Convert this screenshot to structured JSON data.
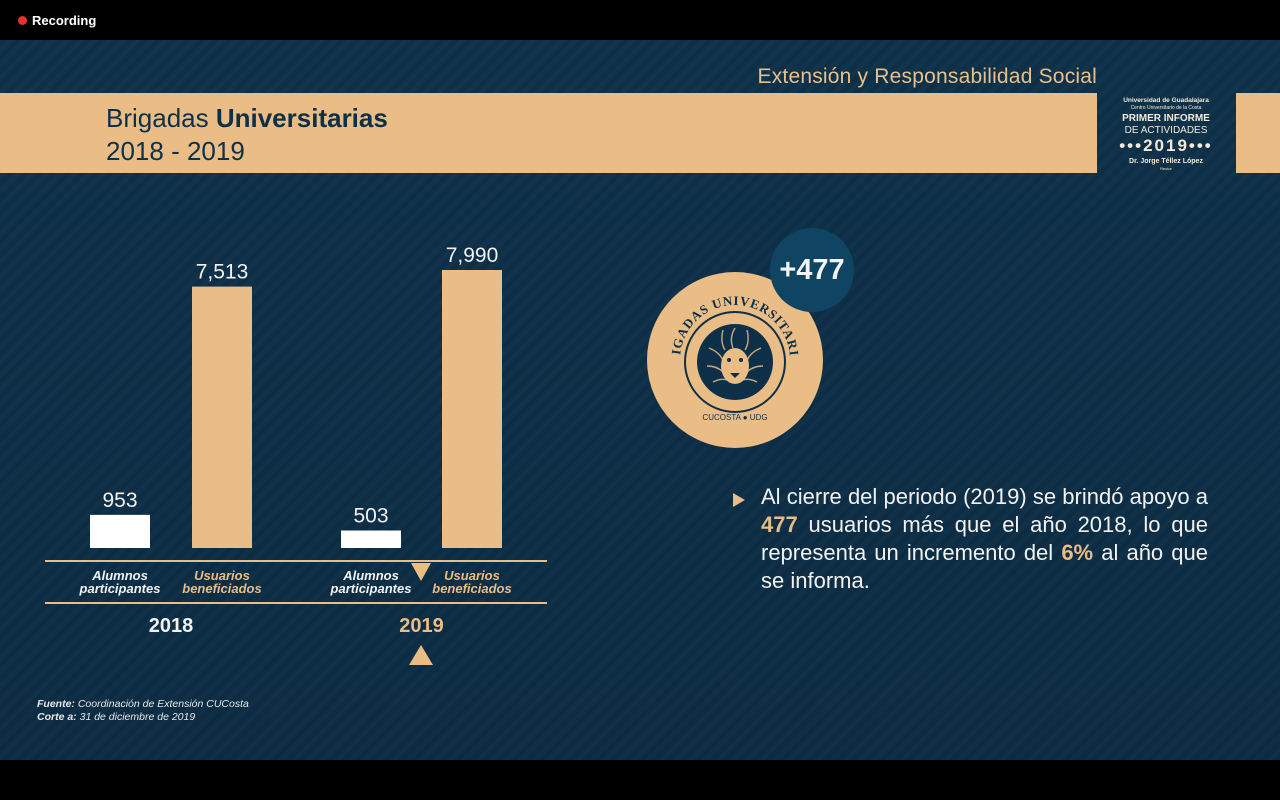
{
  "recording": {
    "label": "Recording"
  },
  "header": {
    "section": "Extensión y Responsabilidad Social",
    "title_regular": "Brigadas ",
    "title_bold": "Universitarias",
    "period": "2018 - 2019"
  },
  "logo": {
    "line1": "Universidad de Guadalajara",
    "line2": "Centro Universitario de la Costa",
    "line3": "PRIMER INFORME",
    "line4": "DE ACTIVIDADES",
    "line5": "•••2019•••",
    "line6": "Dr. Jorge Téllez López",
    "line7": "Rector"
  },
  "chart_data": {
    "type": "bar",
    "groups": [
      "2018",
      "2019"
    ],
    "categories": [
      "Alumnos participantes",
      "Usuarios beneficiados"
    ],
    "series": [
      {
        "name": "2018",
        "values": [
          953,
          7513
        ],
        "labels": [
          "953",
          "7,513"
        ]
      },
      {
        "name": "2019",
        "values": [
          503,
          7990
        ],
        "labels": [
          "503",
          "7,990"
        ]
      }
    ],
    "category_lines": [
      [
        "Alumnos",
        "participantes"
      ],
      [
        "Usuarios",
        "beneficiados"
      ]
    ],
    "highlight_group": "2019",
    "colors": {
      "alumnos": "#ffffff",
      "usuarios": "#e9bd85",
      "axis": "#e9bd85",
      "text": "#f2f2f2"
    }
  },
  "badge": {
    "delta": "+477",
    "seal_top": "BRIGADAS UNIVERSITARIAS",
    "seal_bottom": "CUCOSTA ● UDG"
  },
  "summary": {
    "part1": "Al cierre del periodo (2019) se brindó apoyo a ",
    "num": "477",
    "part2": " usuarios más que el año 2018, lo que representa un incremento del ",
    "pct": "6%",
    "part3": " al año que se informa."
  },
  "source": {
    "label1": "Fuente:",
    "text1": " Coordinación de Extensión CUCosta",
    "label2": "Corte a:",
    "text2": " 31 de diciembre de 2019"
  }
}
